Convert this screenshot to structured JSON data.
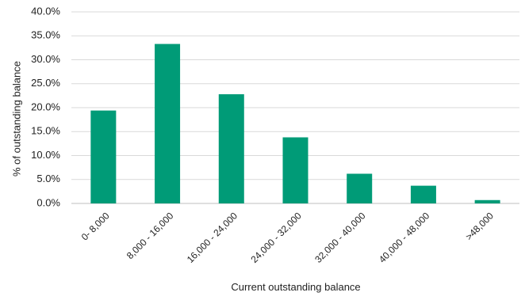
{
  "chart_data": {
    "type": "bar",
    "categories": [
      "0- 8,000",
      "8,000 - 16,000",
      "16,000 - 24,000",
      "24,000 - 32,000",
      "32,000 - 40,000",
      "40,000 - 48,000",
      ">48,000"
    ],
    "values": [
      19.4,
      33.3,
      22.8,
      13.8,
      6.2,
      3.7,
      0.7
    ],
    "value_unit": "%",
    "ylim": [
      0,
      40
    ],
    "yticks": [
      "0.0%",
      "5.0%",
      "10.0%",
      "15.0%",
      "20.0%",
      "25.0%",
      "30.0%",
      "35.0%",
      "40.0%"
    ],
    "xlabel": "Current outstanding balance",
    "ylabel": "% of outstanding balance",
    "grid": true,
    "bar_color": "#009B77"
  }
}
